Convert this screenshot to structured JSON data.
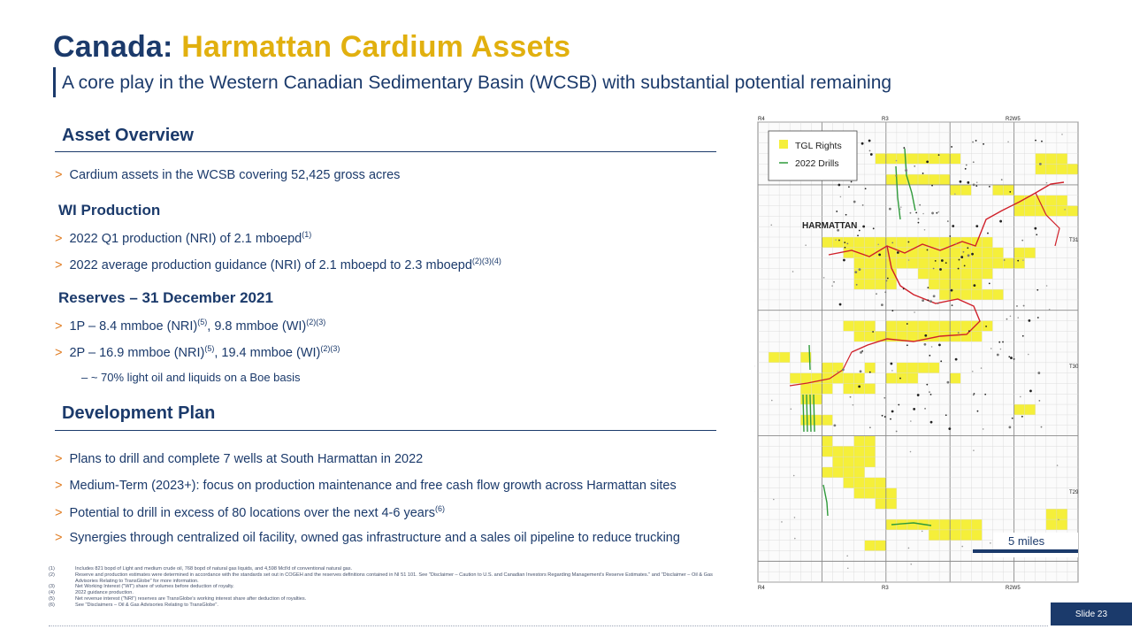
{
  "title": {
    "part1": "Canada:",
    "part2": "Harmattan Cardium Assets"
  },
  "subtitle": "A core play in the Western Canadian Sedimentary Basin (WCSB) with substantial potential remaining",
  "asset_overview": {
    "heading": "Asset Overview",
    "bullet1": "Cardium assets in the WCSB covering 52,425 gross acres"
  },
  "wi_production": {
    "heading": "WI Production",
    "b1_text": "2022 Q1 production (NRI) of 2.1 mboepd",
    "b1_sup": "(1)",
    "b2_text": "2022 average production guidance (NRI) of 2.1 mboepd to 2.3 mboepd",
    "b2_sup": "(2)(3)(4)"
  },
  "reserves": {
    "heading": "Reserves – 31 December 2021",
    "b1_a": "1P  – 8.4 mmboe (NRI)",
    "b1_sup1": "(5)",
    "b1_b": ", 9.8 mmboe (WI)",
    "b1_sup2": "(2)(3)",
    "b2_a": "2P – 16.9 mmboe (NRI)",
    "b2_sup1": "(5)",
    "b2_b": ", 19.4 mmboe (WI)",
    "b2_sup2": "(2)(3)",
    "sub": "– ~ 70% light oil and liquids on a Boe basis"
  },
  "development": {
    "heading": "Development Plan",
    "b1": "Plans to drill and complete 7 wells at South Harmattan in 2022",
    "b2": "Medium-Term (2023+): focus on production maintenance and free cash flow growth across Harmattan sites",
    "b3_text": "Potential to drill in excess of 80 locations over the next 4-6 years",
    "b3_sup": "(6)",
    "b4": "Synergies through centralized oil facility, owned gas infrastructure and a sales oil pipeline to reduce trucking"
  },
  "bullet_marker": ">",
  "footnotes": [
    {
      "n": "(1)",
      "t": "Includes 821 bopd of Light and medium crude oil, 768 bopd of natural gas liquids, and 4,598 Mcf/d of conventional natural gas."
    },
    {
      "n": "(2)",
      "t": "Reserve and production estimates were determined in accordance with the standards set out in COGEH and the reserves definitions contained in NI 51 101. See \"Disclaimer – Caution to U.S. and Canadian Investors Regarding Management's Reserve Estimates.\" and \"Disclaimer – Oil & Gas Advisories Relating to TransGlobe\" for more information."
    },
    {
      "n": "(3)",
      "t": "Net Working Interest (\"WI\") share of volumes before deduction of royalty."
    },
    {
      "n": "(4)",
      "t": "2022 guidance production."
    },
    {
      "n": "(5)",
      "t": "Net revenue interest (\"NRI\") reserves are TransGlobe's working interest share after deduction of royalties."
    },
    {
      "n": "(6)",
      "t": "See \"Disclaimers – Oil & Gas Advisories Relating to TransGlobe\"."
    }
  ],
  "slide_number": "Slide 23",
  "map": {
    "legend_rights": "TGL Rights",
    "legend_drills": "2022 Drills",
    "place": "HARMATTAN",
    "scale": "5 miles",
    "top_ranges": [
      "R4",
      "R3",
      "R2W5"
    ],
    "bottom_ranges": [
      "R4",
      "R3",
      "R2W5"
    ],
    "townships": [
      "T31",
      "T30",
      "T29"
    ],
    "colors": {
      "rights": "#f5ef3a",
      "drills": "#2e9a3a",
      "pipeline": "#d0202a"
    }
  }
}
